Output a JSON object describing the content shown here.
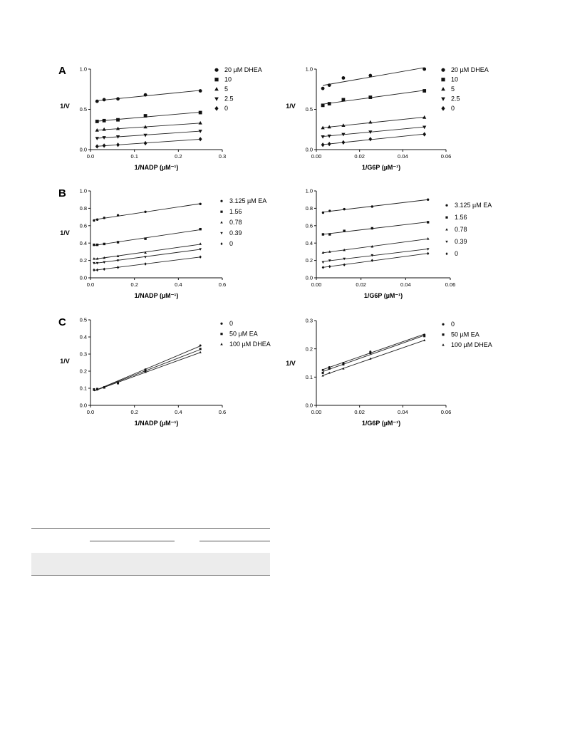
{
  "panel_letters": [
    "A",
    "B",
    "C"
  ],
  "chart_data": [
    {
      "type": "line",
      "panel": "A",
      "xlabel": "1/NADP (µM⁻¹)",
      "ylabel": "1/V",
      "xlim": [
        0,
        0.3
      ],
      "ylim": [
        0,
        1.0
      ],
      "xticks": [
        0.0,
        0.1,
        0.2,
        0.3
      ],
      "yticks": [
        0.0,
        0.5,
        1.0
      ],
      "xtick_labels": [
        "0.0",
        "0.1",
        "0.2",
        "0.3"
      ],
      "ytick_labels": [
        "0.0",
        "0.5",
        "1.0"
      ],
      "legend_position": "right",
      "series": [
        {
          "name": "20 µM DHEA",
          "marker": "circle",
          "x": [
            0.015,
            0.031,
            0.0625,
            0.125,
            0.25
          ],
          "y": [
            0.6,
            0.62,
            0.63,
            0.68,
            0.73
          ]
        },
        {
          "name": "10",
          "marker": "square",
          "x": [
            0.015,
            0.031,
            0.0625,
            0.125,
            0.25
          ],
          "y": [
            0.35,
            0.36,
            0.37,
            0.42,
            0.46
          ]
        },
        {
          "name": "5",
          "marker": "triangle-up",
          "x": [
            0.015,
            0.031,
            0.0625,
            0.125,
            0.25
          ],
          "y": [
            0.24,
            0.25,
            0.26,
            0.28,
            0.33
          ]
        },
        {
          "name": "2.5",
          "marker": "triangle-down",
          "x": [
            0.015,
            0.031,
            0.0625,
            0.125,
            0.25
          ],
          "y": [
            0.14,
            0.15,
            0.16,
            0.18,
            0.23
          ]
        },
        {
          "name": "0",
          "marker": "diamond",
          "x": [
            0.015,
            0.031,
            0.0625,
            0.125,
            0.25
          ],
          "y": [
            0.04,
            0.05,
            0.06,
            0.08,
            0.13
          ]
        }
      ]
    },
    {
      "type": "line",
      "panel": "A",
      "xlabel": "1/G6P (µM⁻¹)",
      "ylabel": "1/V",
      "xlim": [
        0,
        0.06
      ],
      "ylim": [
        0,
        1.0
      ],
      "xticks": [
        0.0,
        0.02,
        0.04,
        0.06
      ],
      "yticks": [
        0.0,
        0.5,
        1.0
      ],
      "xtick_labels": [
        "0.00",
        "0.02",
        "0.04",
        "0.06"
      ],
      "ytick_labels": [
        "0.0",
        "0.5",
        "1.0"
      ],
      "legend_position": "right",
      "series": [
        {
          "name": "20 µM DHEA",
          "marker": "circle",
          "x": [
            0.003,
            0.006,
            0.0125,
            0.025,
            0.05
          ],
          "y": [
            0.76,
            0.8,
            0.89,
            0.92,
            1.0
          ]
        },
        {
          "name": "10",
          "marker": "square",
          "x": [
            0.003,
            0.006,
            0.0125,
            0.025,
            0.05
          ],
          "y": [
            0.55,
            0.57,
            0.62,
            0.65,
            0.73
          ]
        },
        {
          "name": "5",
          "marker": "triangle-up",
          "x": [
            0.003,
            0.006,
            0.0125,
            0.025,
            0.05
          ],
          "y": [
            0.27,
            0.28,
            0.3,
            0.34,
            0.4
          ]
        },
        {
          "name": "2.5",
          "marker": "triangle-down",
          "x": [
            0.003,
            0.006,
            0.0125,
            0.025,
            0.05
          ],
          "y": [
            0.16,
            0.17,
            0.19,
            0.22,
            0.28
          ]
        },
        {
          "name": "0",
          "marker": "diamond",
          "x": [
            0.003,
            0.006,
            0.0125,
            0.025,
            0.05
          ],
          "y": [
            0.06,
            0.07,
            0.09,
            0.13,
            0.19
          ]
        }
      ]
    },
    {
      "type": "line",
      "panel": "B",
      "xlabel": "1/NADP (µM⁻¹)",
      "ylabel": "1/V",
      "xlim": [
        0,
        0.6
      ],
      "ylim": [
        0,
        1.0
      ],
      "xticks": [
        0.0,
        0.2,
        0.4,
        0.6
      ],
      "yticks": [
        0.0,
        0.2,
        0.4,
        0.6,
        0.8,
        1.0
      ],
      "xtick_labels": [
        "0.0",
        "0.2",
        "0.4",
        "0.6"
      ],
      "ytick_labels": [
        "0.0",
        "0.2",
        "0.4",
        "0.6",
        "0.8",
        "1.0"
      ],
      "legend_position": "right",
      "series": [
        {
          "name": "3.125 µM EA",
          "marker": "circle",
          "x": [
            0.016,
            0.031,
            0.0625,
            0.125,
            0.25,
            0.5
          ],
          "y": [
            0.66,
            0.67,
            0.69,
            0.72,
            0.76,
            0.85
          ]
        },
        {
          "name": "1.56",
          "marker": "square",
          "x": [
            0.016,
            0.031,
            0.0625,
            0.125,
            0.25,
            0.5
          ],
          "y": [
            0.38,
            0.38,
            0.39,
            0.41,
            0.45,
            0.56
          ]
        },
        {
          "name": "0.78",
          "marker": "triangle-up",
          "x": [
            0.016,
            0.031,
            0.0625,
            0.125,
            0.25,
            0.5
          ],
          "y": [
            0.22,
            0.22,
            0.23,
            0.25,
            0.29,
            0.39
          ]
        },
        {
          "name": "0.39",
          "marker": "triangle-down",
          "x": [
            0.016,
            0.031,
            0.0625,
            0.125,
            0.25,
            0.5
          ],
          "y": [
            0.17,
            0.17,
            0.18,
            0.2,
            0.24,
            0.33
          ]
        },
        {
          "name": "0",
          "marker": "diamond",
          "x": [
            0.016,
            0.031,
            0.0625,
            0.125,
            0.25,
            0.5
          ],
          "y": [
            0.09,
            0.09,
            0.1,
            0.12,
            0.16,
            0.24
          ]
        }
      ]
    },
    {
      "type": "line",
      "panel": "B",
      "xlabel": "1/G6P (µM⁻¹)",
      "ylabel": "",
      "xlim": [
        0,
        0.06
      ],
      "ylim": [
        0,
        1.0
      ],
      "xticks": [
        0.0,
        0.02,
        0.04,
        0.06
      ],
      "yticks": [
        0.0,
        0.2,
        0.4,
        0.6,
        0.8,
        1.0
      ],
      "xtick_labels": [
        "0.00",
        "0.02",
        "0.04",
        "0.06"
      ],
      "ytick_labels": [
        "0.0",
        "0.2",
        "0.4",
        "0.6",
        "0.8",
        "1.0"
      ],
      "legend_position": "right",
      "series": [
        {
          "name": "3.125 µM EA",
          "marker": "circle",
          "x": [
            0.003,
            0.006,
            0.0125,
            0.025,
            0.05
          ],
          "y": [
            0.75,
            0.77,
            0.79,
            0.82,
            0.9
          ]
        },
        {
          "name": "1.56",
          "marker": "square",
          "x": [
            0.003,
            0.006,
            0.0125,
            0.025,
            0.05
          ],
          "y": [
            0.5,
            0.5,
            0.54,
            0.57,
            0.64
          ]
        },
        {
          "name": "0.78",
          "marker": "triangle-up",
          "x": [
            0.003,
            0.006,
            0.0125,
            0.025,
            0.05
          ],
          "y": [
            0.29,
            0.3,
            0.32,
            0.36,
            0.45
          ]
        },
        {
          "name": "0.39",
          "marker": "triangle-down",
          "x": [
            0.003,
            0.006,
            0.0125,
            0.025,
            0.05
          ],
          "y": [
            0.18,
            0.2,
            0.22,
            0.26,
            0.33
          ]
        },
        {
          "name": "0",
          "marker": "diamond",
          "x": [
            0.003,
            0.006,
            0.0125,
            0.025,
            0.05
          ],
          "y": [
            0.12,
            0.13,
            0.15,
            0.2,
            0.28
          ]
        }
      ]
    },
    {
      "type": "line",
      "panel": "C",
      "xlabel": "1/NADP (µM⁻¹)",
      "ylabel": "1/V",
      "xlim": [
        0,
        0.6
      ],
      "ylim": [
        0,
        0.5
      ],
      "xticks": [
        0.0,
        0.2,
        0.4,
        0.6
      ],
      "yticks": [
        0.0,
        0.1,
        0.2,
        0.3,
        0.4,
        0.5
      ],
      "xtick_labels": [
        "0.0",
        "0.2",
        "0.4",
        "0.6"
      ],
      "ytick_labels": [
        "0.0",
        "0.1",
        "0.2",
        "0.3",
        "0.4",
        "0.5"
      ],
      "legend_position": "top-right",
      "series": [
        {
          "name": "0",
          "marker": "circle",
          "x": [
            0.016,
            0.031,
            0.0625,
            0.125,
            0.25,
            0.5
          ],
          "y": [
            0.092,
            0.095,
            0.107,
            0.135,
            0.21,
            0.35
          ]
        },
        {
          "name": "50 µM EA",
          "marker": "square",
          "x": [
            0.016,
            0.031,
            0.0625,
            0.125,
            0.25,
            0.5
          ],
          "y": [
            0.094,
            0.096,
            0.105,
            0.13,
            0.2,
            0.33
          ]
        },
        {
          "name": "100 µM DHEA",
          "marker": "triangle-up",
          "x": [
            0.016,
            0.031,
            0.0625,
            0.125,
            0.25,
            0.5
          ],
          "y": [
            0.09,
            0.092,
            0.103,
            0.128,
            0.195,
            0.31
          ]
        }
      ]
    },
    {
      "type": "line",
      "panel": "C",
      "xlabel": "1/G6P (µM⁻¹)",
      "ylabel": "1/V",
      "xlim": [
        0,
        0.06
      ],
      "ylim": [
        0,
        0.3
      ],
      "xticks": [
        0.0,
        0.02,
        0.04,
        0.06
      ],
      "yticks": [
        0.0,
        0.1,
        0.2,
        0.3
      ],
      "xtick_labels": [
        "0.00",
        "0.02",
        "0.04",
        "0.06"
      ],
      "ytick_labels": [
        "0.0",
        "0.1",
        "0.2",
        "0.3"
      ],
      "legend_position": "top-right",
      "series": [
        {
          "name": "0",
          "marker": "circle",
          "x": [
            0.003,
            0.006,
            0.0125,
            0.025,
            0.05
          ],
          "y": [
            0.125,
            0.135,
            0.15,
            0.19,
            0.25
          ]
        },
        {
          "name": "50 µM EA",
          "marker": "square",
          "x": [
            0.003,
            0.006,
            0.0125,
            0.025,
            0.05
          ],
          "y": [
            0.115,
            0.13,
            0.145,
            0.185,
            0.245
          ]
        },
        {
          "name": "100 µM  DHEA",
          "marker": "triangle-up",
          "x": [
            0.003,
            0.006,
            0.0125,
            0.025,
            0.05
          ],
          "y": [
            0.105,
            0.115,
            0.13,
            0.165,
            0.23
          ]
        }
      ]
    }
  ]
}
